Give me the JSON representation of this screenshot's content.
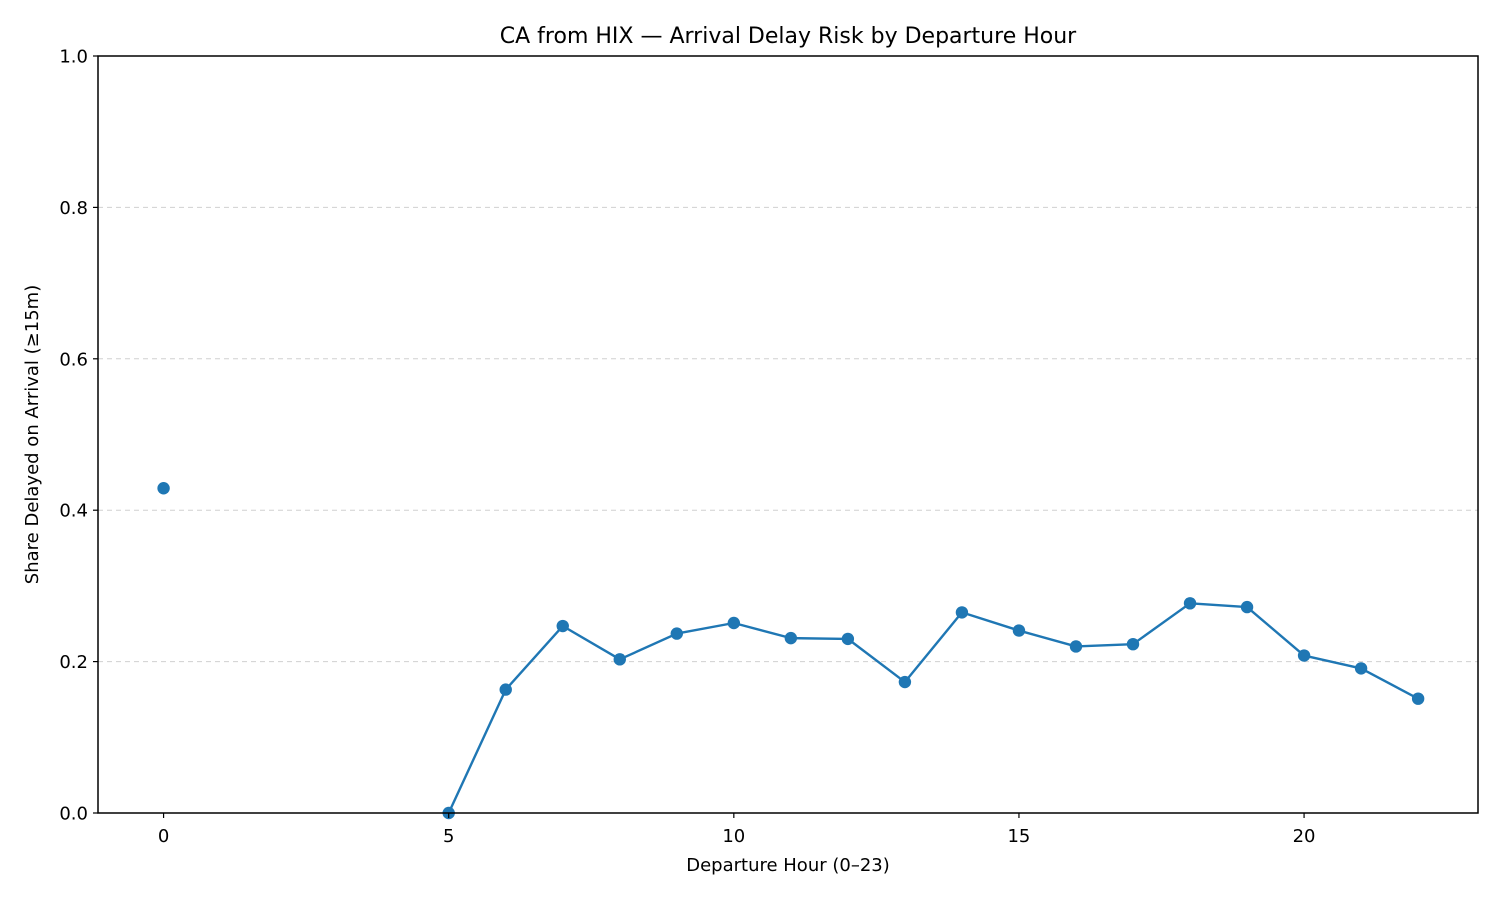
{
  "chart_data": {
    "type": "line",
    "title": "CA from HIX — Arrival Delay Risk by Departure Hour",
    "xlabel": "Departure Hour (0–23)",
    "ylabel": "Share Delayed on Arrival (≥15m)",
    "xlim": [
      -1.15,
      23.05
    ],
    "ylim": [
      0,
      1.0
    ],
    "x_ticks": [
      0,
      5,
      10,
      15,
      20
    ],
    "y_ticks": [
      0.0,
      0.2,
      0.4,
      0.6,
      0.8,
      1.0
    ],
    "y_tick_labels": [
      "0.0",
      "0.2",
      "0.4",
      "0.6",
      "0.8",
      "1.0"
    ],
    "grid": "y-dashed",
    "series_color": "#1f77b4",
    "series": [
      {
        "x": [
          0,
          5,
          6,
          7,
          8,
          9,
          10,
          11,
          12,
          13,
          14,
          15,
          16,
          17,
          18,
          19,
          20,
          21,
          22
        ],
        "values": [
          0.429,
          0.0,
          0.163,
          0.247,
          0.203,
          0.237,
          0.251,
          0.231,
          0.23,
          0.173,
          0.265,
          0.241,
          0.22,
          0.223,
          0.277,
          0.272,
          0.208,
          0.191,
          0.151
        ],
        "segments": [
          [
            0
          ],
          [
            1,
            2,
            3,
            4,
            5,
            6,
            7,
            8,
            9,
            10,
            11,
            12,
            13,
            14,
            15,
            16,
            17,
            18
          ]
        ]
      }
    ]
  }
}
